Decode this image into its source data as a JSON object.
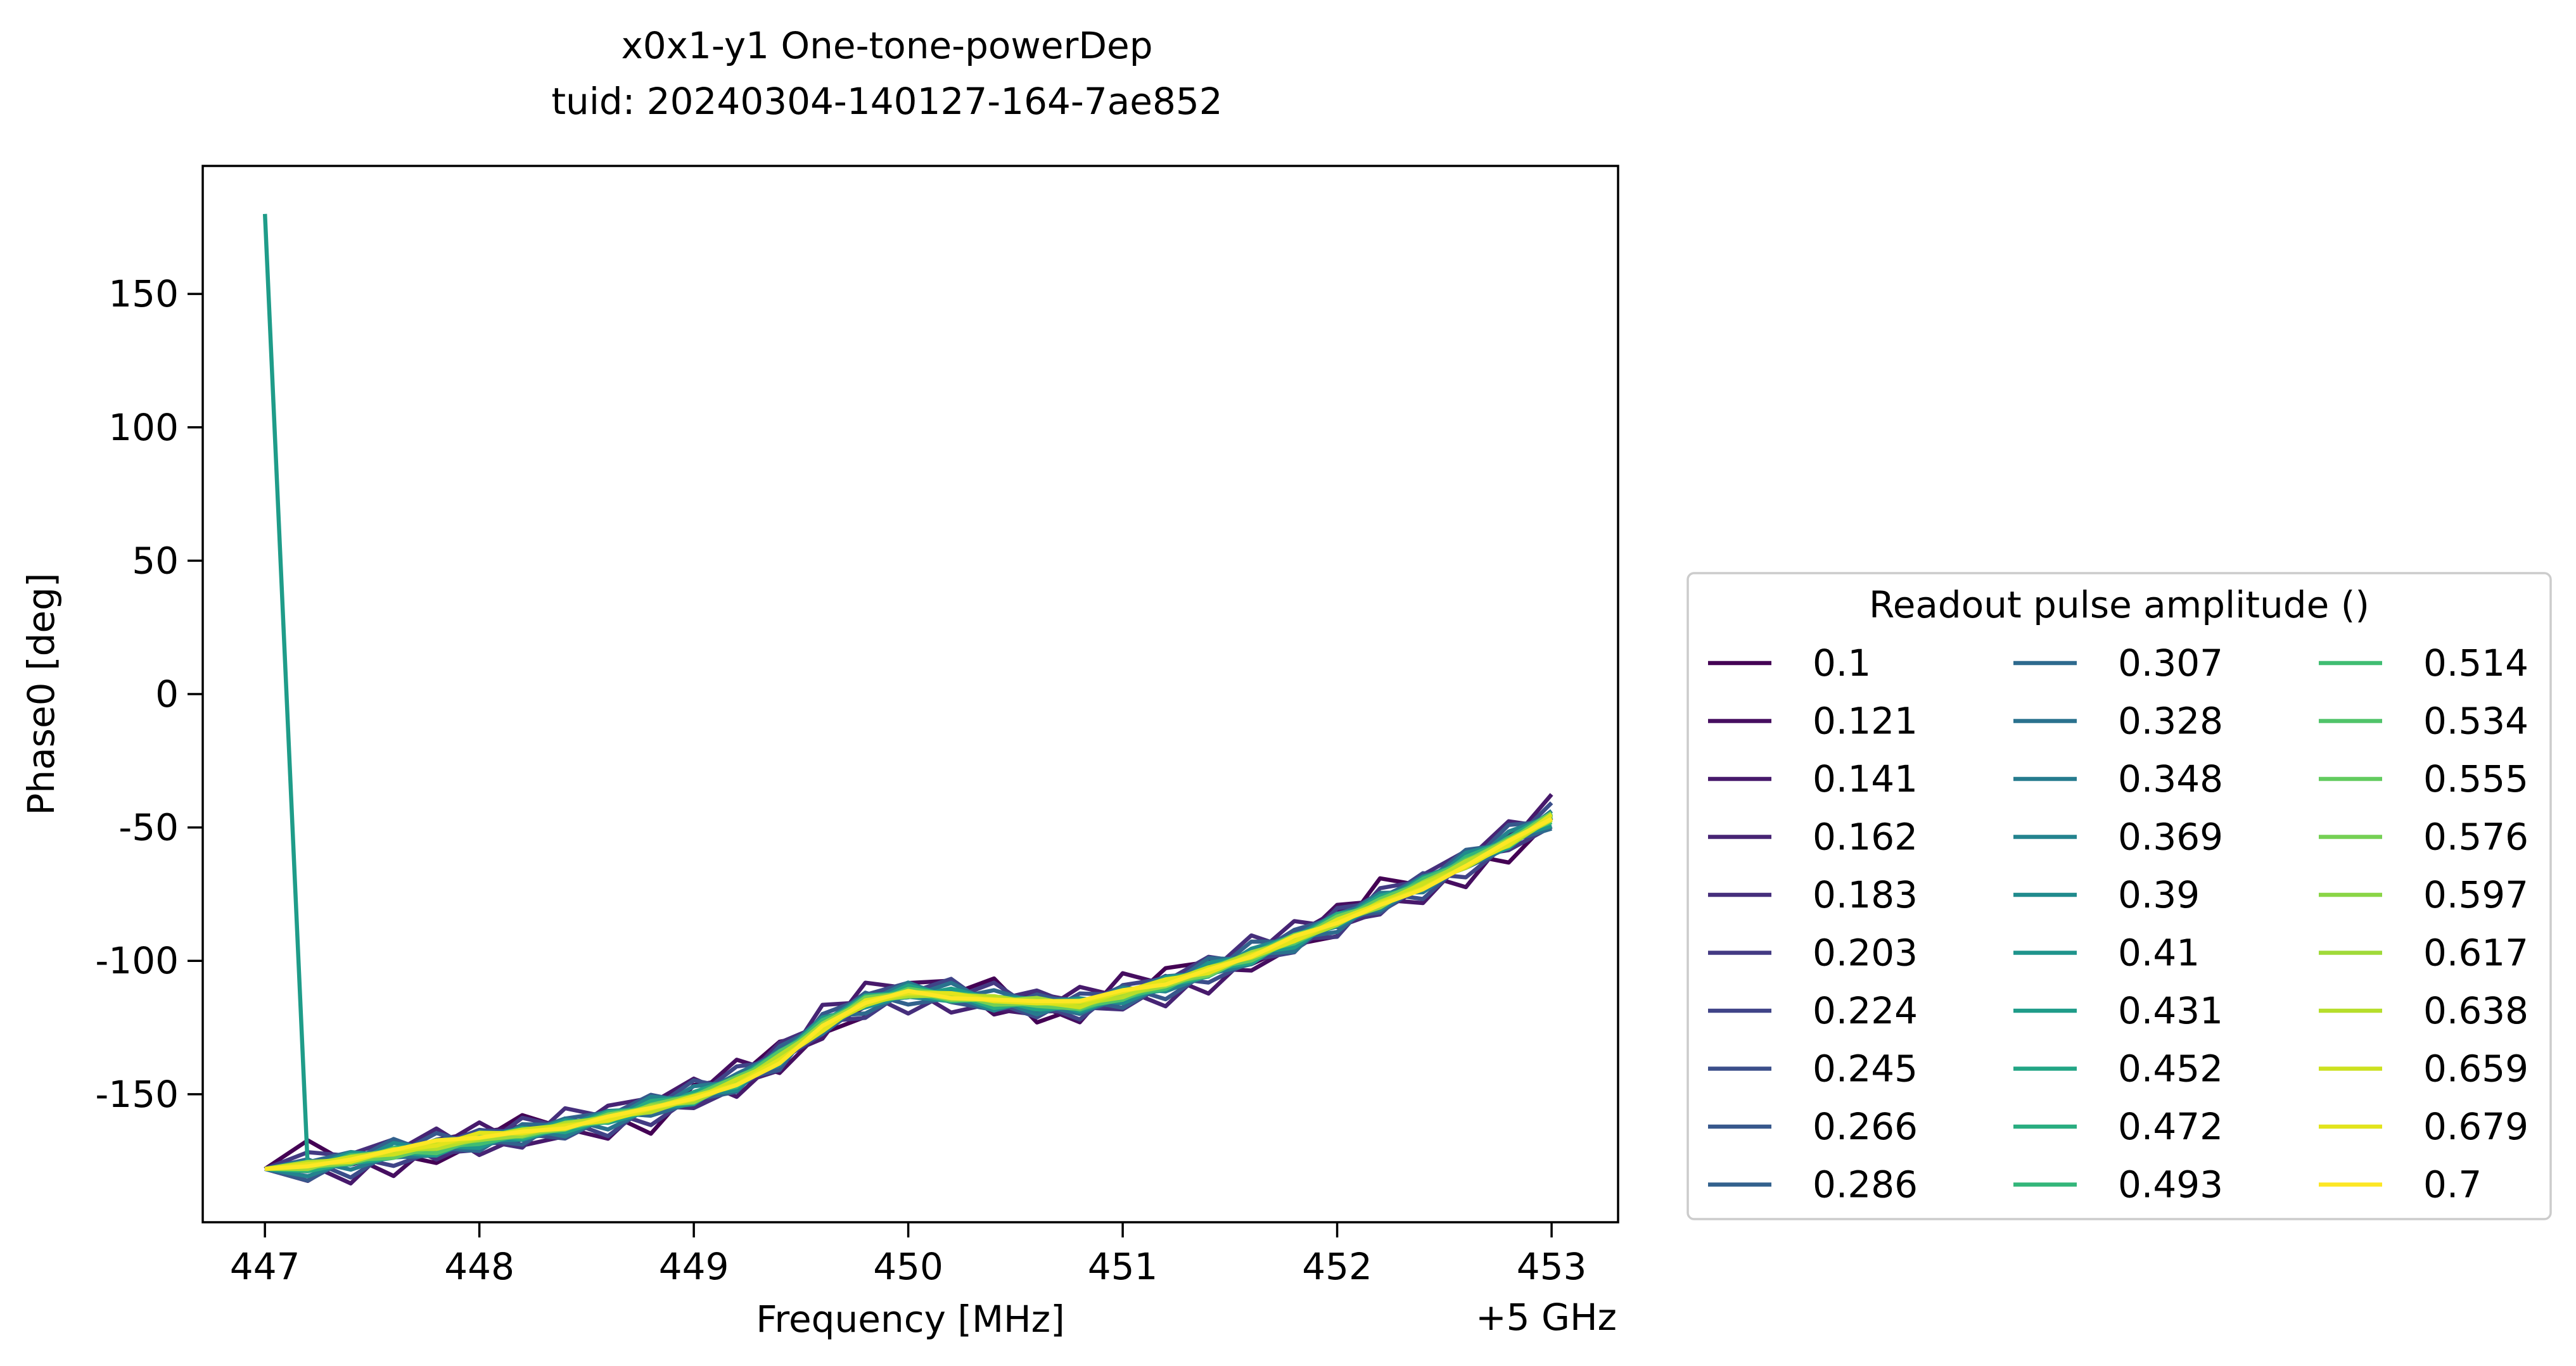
{
  "chart_data": {
    "type": "line",
    "title_line1": "x0x1-y1 One-tone-powerDep",
    "title_line2": "tuid: 20240304-140127-164-7ae852",
    "xlabel": "Frequency [MHz]",
    "x_offset_label": "+5 GHz",
    "ylabel": "Phase0 [deg]",
    "xlim": [
      446.71,
      453.31
    ],
    "ylim": [
      -198,
      198
    ],
    "xticks": [
      447,
      448,
      449,
      450,
      451,
      452,
      453
    ],
    "xtick_labels": [
      "447",
      "448",
      "449",
      "450",
      "451",
      "452",
      "453"
    ],
    "yticks": [
      150,
      100,
      50,
      0,
      -50,
      -100,
      -150
    ],
    "ytick_labels": [
      "150",
      "100",
      "50",
      "0",
      "-50",
      "-100",
      "-150"
    ],
    "grid": false,
    "legend_title": "Readout pulse amplitude ()",
    "legend_position": "right, outside, bottom",
    "x": [
      447.0,
      447.2,
      447.4,
      447.6,
      447.8,
      448.0,
      448.2,
      448.4,
      448.6,
      448.8,
      449.0,
      449.2,
      449.4,
      449.6,
      449.8,
      450.0,
      450.2,
      450.4,
      450.6,
      450.8,
      451.0,
      451.2,
      451.4,
      451.6,
      451.8,
      452.0,
      452.2,
      452.4,
      452.6,
      452.8,
      453.0
    ],
    "base_curve": [
      -178,
      -177,
      -175,
      -172,
      -170,
      -167,
      -165,
      -162,
      -159,
      -155,
      -151,
      -145,
      -136,
      -124,
      -115,
      -112,
      -113,
      -115,
      -116,
      -117,
      -113,
      -109,
      -104,
      -98,
      -92,
      -85,
      -78,
      -71,
      -63,
      -55,
      -46
    ],
    "highlight_spike": {
      "series": "0.431",
      "points": [
        [
          447.0,
          180
        ],
        [
          447.2,
          -178
        ]
      ]
    },
    "series": [
      {
        "name": "0.1",
        "color": "#440154"
      },
      {
        "name": "0.121",
        "color": "#460e60"
      },
      {
        "name": "0.141",
        "color": "#47196b"
      },
      {
        "name": "0.162",
        "color": "#472474"
      },
      {
        "name": "0.183",
        "color": "#462f7c"
      },
      {
        "name": "0.203",
        "color": "#433a83"
      },
      {
        "name": "0.224",
        "color": "#404488"
      },
      {
        "name": "0.245",
        "color": "#3b4e8a"
      },
      {
        "name": "0.266",
        "color": "#37588c"
      },
      {
        "name": "0.286",
        "color": "#32618d"
      },
      {
        "name": "0.307",
        "color": "#2e6a8e"
      },
      {
        "name": "0.328",
        "color": "#2a728e"
      },
      {
        "name": "0.348",
        "color": "#267b8e"
      },
      {
        "name": "0.369",
        "color": "#23838e"
      },
      {
        "name": "0.39",
        "color": "#208b8d"
      },
      {
        "name": "0.41",
        "color": "#1f948c"
      },
      {
        "name": "0.431",
        "color": "#1f9c89"
      },
      {
        "name": "0.452",
        "color": "#22a585"
      },
      {
        "name": "0.472",
        "color": "#29ad80"
      },
      {
        "name": "0.493",
        "color": "#33b67a"
      },
      {
        "name": "0.514",
        "color": "#40bd72"
      },
      {
        "name": "0.534",
        "color": "#50c46a"
      },
      {
        "name": "0.555",
        "color": "#62cb5f"
      },
      {
        "name": "0.576",
        "color": "#75d054"
      },
      {
        "name": "0.597",
        "color": "#8ad547"
      },
      {
        "name": "0.617",
        "color": "#a0da39"
      },
      {
        "name": "0.638",
        "color": "#b6de2b"
      },
      {
        "name": "0.659",
        "color": "#cce11f"
      },
      {
        "name": "0.679",
        "color": "#e2e41c"
      },
      {
        "name": "0.7",
        "color": "#fde725"
      }
    ]
  }
}
